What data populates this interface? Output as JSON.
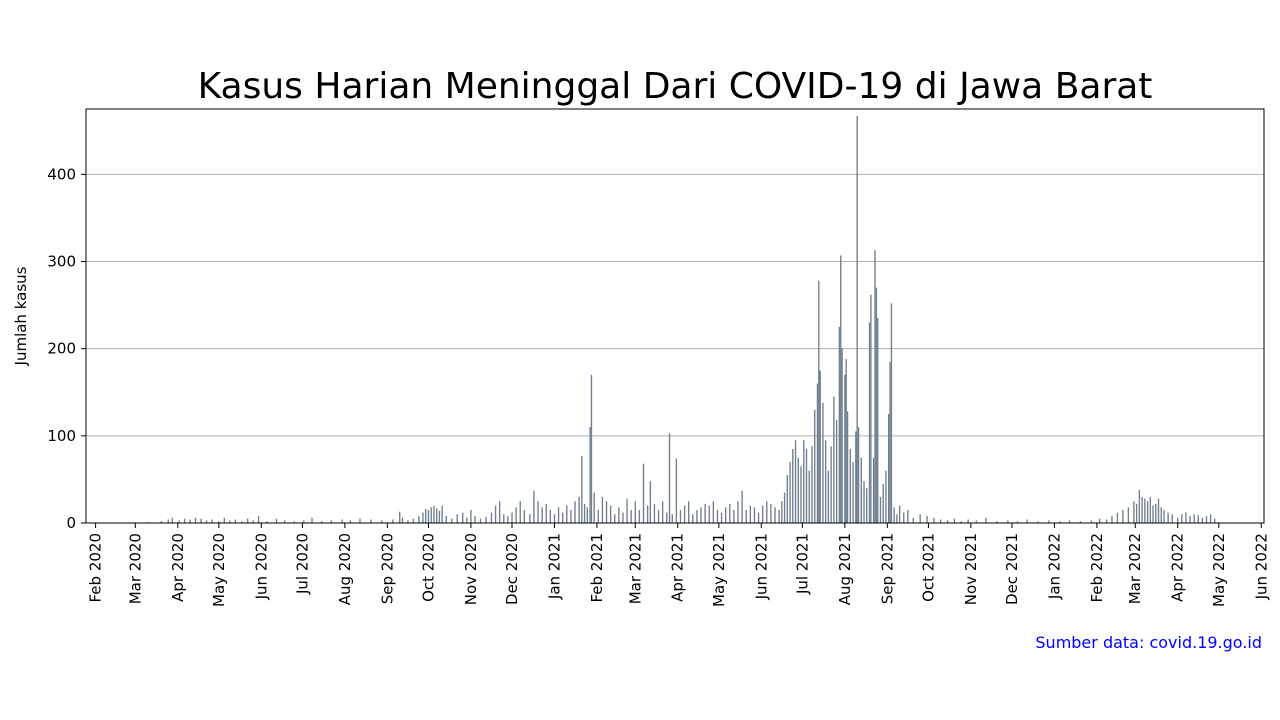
{
  "chart_data": {
    "type": "bar",
    "title": "Kasus Harian Meninggal Dari COVID-19 di Jawa Barat",
    "ylabel": "Jumlah kasus",
    "source": "Sumber data: covid.19.go.id",
    "bar_color": "#708090",
    "source_color": "#0000ff",
    "grid": "horizontal",
    "ylim": [
      0,
      475
    ],
    "xlim": [
      "2020-01-25",
      "2022-06-03"
    ],
    "yticks": [
      0,
      100,
      200,
      300,
      400
    ],
    "xticks": [
      {
        "date": "2020-02-01",
        "label": "Feb 2020"
      },
      {
        "date": "2020-03-01",
        "label": "Mar 2020"
      },
      {
        "date": "2020-04-01",
        "label": "Apr 2020"
      },
      {
        "date": "2020-05-01",
        "label": "May 2020"
      },
      {
        "date": "2020-06-01",
        "label": "Jun 2020"
      },
      {
        "date": "2020-07-01",
        "label": "Jul 2020"
      },
      {
        "date": "2020-08-01",
        "label": "Aug 2020"
      },
      {
        "date": "2020-09-01",
        "label": "Sep 2020"
      },
      {
        "date": "2020-10-01",
        "label": "Oct 2020"
      },
      {
        "date": "2020-11-01",
        "label": "Nov 2020"
      },
      {
        "date": "2020-12-01",
        "label": "Dec 2020"
      },
      {
        "date": "2021-01-01",
        "label": "Jan 2021"
      },
      {
        "date": "2021-02-01",
        "label": "Feb 2021"
      },
      {
        "date": "2021-03-01",
        "label": "Mar 2021"
      },
      {
        "date": "2021-04-01",
        "label": "Apr 2021"
      },
      {
        "date": "2021-05-01",
        "label": "May 2021"
      },
      {
        "date": "2021-06-01",
        "label": "Jun 2021"
      },
      {
        "date": "2021-07-01",
        "label": "Jul 2021"
      },
      {
        "date": "2021-08-01",
        "label": "Aug 2021"
      },
      {
        "date": "2021-09-01",
        "label": "Sep 2021"
      },
      {
        "date": "2021-10-01",
        "label": "Oct 2021"
      },
      {
        "date": "2021-11-01",
        "label": "Nov 2021"
      },
      {
        "date": "2021-12-01",
        "label": "Dec 2021"
      },
      {
        "date": "2022-01-01",
        "label": "Jan 2022"
      },
      {
        "date": "2022-02-01",
        "label": "Feb 2022"
      },
      {
        "date": "2022-03-01",
        "label": "Mar 2022"
      },
      {
        "date": "2022-04-01",
        "label": "Apr 2022"
      },
      {
        "date": "2022-05-01",
        "label": "May 2022"
      },
      {
        "date": "2022-06-01",
        "label": "Jun 2022"
      }
    ],
    "points": [
      [
        "2020-03-10",
        1
      ],
      [
        "2020-03-20",
        2
      ],
      [
        "2020-03-25",
        4
      ],
      [
        "2020-03-28",
        6
      ],
      [
        "2020-04-02",
        3
      ],
      [
        "2020-04-06",
        5
      ],
      [
        "2020-04-10",
        4
      ],
      [
        "2020-04-14",
        6
      ],
      [
        "2020-04-18",
        5
      ],
      [
        "2020-04-22",
        3
      ],
      [
        "2020-04-26",
        4
      ],
      [
        "2020-05-01",
        2
      ],
      [
        "2020-05-05",
        6
      ],
      [
        "2020-05-09",
        3
      ],
      [
        "2020-05-13",
        4
      ],
      [
        "2020-05-18",
        2
      ],
      [
        "2020-05-22",
        5
      ],
      [
        "2020-05-26",
        3
      ],
      [
        "2020-05-30",
        8
      ],
      [
        "2020-06-05",
        2
      ],
      [
        "2020-06-12",
        5
      ],
      [
        "2020-06-18",
        3
      ],
      [
        "2020-06-25",
        2
      ],
      [
        "2020-07-02",
        3
      ],
      [
        "2020-07-08",
        6
      ],
      [
        "2020-07-15",
        2
      ],
      [
        "2020-07-22",
        3
      ],
      [
        "2020-07-30",
        4
      ],
      [
        "2020-08-05",
        3
      ],
      [
        "2020-08-12",
        5
      ],
      [
        "2020-08-20",
        4
      ],
      [
        "2020-08-28",
        3
      ],
      [
        "2020-09-05",
        4
      ],
      [
        "2020-09-10",
        13
      ],
      [
        "2020-09-12",
        6
      ],
      [
        "2020-09-16",
        3
      ],
      [
        "2020-09-20",
        5
      ],
      [
        "2020-09-24",
        8
      ],
      [
        "2020-09-27",
        12
      ],
      [
        "2020-09-29",
        16
      ],
      [
        "2020-10-01",
        15
      ],
      [
        "2020-10-03",
        18
      ],
      [
        "2020-10-05",
        20
      ],
      [
        "2020-10-07",
        17
      ],
      [
        "2020-10-09",
        14
      ],
      [
        "2020-10-11",
        20
      ],
      [
        "2020-10-14",
        8
      ],
      [
        "2020-10-18",
        5
      ],
      [
        "2020-10-22",
        10
      ],
      [
        "2020-10-26",
        12
      ],
      [
        "2020-10-29",
        6
      ],
      [
        "2020-11-01",
        15
      ],
      [
        "2020-11-04",
        8
      ],
      [
        "2020-11-08",
        5
      ],
      [
        "2020-11-12",
        7
      ],
      [
        "2020-11-16",
        12
      ],
      [
        "2020-11-19",
        20
      ],
      [
        "2020-11-22",
        25
      ],
      [
        "2020-11-25",
        10
      ],
      [
        "2020-11-28",
        8
      ],
      [
        "2020-12-01",
        12
      ],
      [
        "2020-12-04",
        18
      ],
      [
        "2020-12-07",
        25
      ],
      [
        "2020-12-10",
        15
      ],
      [
        "2020-12-14",
        10
      ],
      [
        "2020-12-17",
        37
      ],
      [
        "2020-12-20",
        25
      ],
      [
        "2020-12-23",
        18
      ],
      [
        "2020-12-26",
        22
      ],
      [
        "2020-12-29",
        15
      ],
      [
        "2021-01-01",
        10
      ],
      [
        "2021-01-04",
        18
      ],
      [
        "2021-01-07",
        12
      ],
      [
        "2021-01-10",
        20
      ],
      [
        "2021-01-13",
        15
      ],
      [
        "2021-01-16",
        25
      ],
      [
        "2021-01-19",
        30
      ],
      [
        "2021-01-21",
        77
      ],
      [
        "2021-01-23",
        22
      ],
      [
        "2021-01-25",
        18
      ],
      [
        "2021-01-27",
        110
      ],
      [
        "2021-01-28",
        170
      ],
      [
        "2021-01-30",
        35
      ],
      [
        "2021-02-02",
        15
      ],
      [
        "2021-02-05",
        30
      ],
      [
        "2021-02-08",
        25
      ],
      [
        "2021-02-11",
        20
      ],
      [
        "2021-02-14",
        10
      ],
      [
        "2021-02-17",
        18
      ],
      [
        "2021-02-20",
        12
      ],
      [
        "2021-02-23",
        28
      ],
      [
        "2021-02-26",
        15
      ],
      [
        "2021-03-01",
        25
      ],
      [
        "2021-03-04",
        15
      ],
      [
        "2021-03-07",
        68
      ],
      [
        "2021-03-10",
        20
      ],
      [
        "2021-03-12",
        48
      ],
      [
        "2021-03-15",
        22
      ],
      [
        "2021-03-18",
        15
      ],
      [
        "2021-03-21",
        25
      ],
      [
        "2021-03-24",
        12
      ],
      [
        "2021-03-26",
        103
      ],
      [
        "2021-03-28",
        10
      ],
      [
        "2021-03-31",
        74
      ],
      [
        "2021-04-03",
        15
      ],
      [
        "2021-04-06",
        20
      ],
      [
        "2021-04-09",
        25
      ],
      [
        "2021-04-12",
        10
      ],
      [
        "2021-04-15",
        15
      ],
      [
        "2021-04-18",
        18
      ],
      [
        "2021-04-21",
        22
      ],
      [
        "2021-04-24",
        20
      ],
      [
        "2021-04-27",
        25
      ],
      [
        "2021-04-30",
        15
      ],
      [
        "2021-05-03",
        12
      ],
      [
        "2021-05-06",
        18
      ],
      [
        "2021-05-09",
        22
      ],
      [
        "2021-05-12",
        15
      ],
      [
        "2021-05-15",
        25
      ],
      [
        "2021-05-18",
        37
      ],
      [
        "2021-05-21",
        15
      ],
      [
        "2021-05-24",
        20
      ],
      [
        "2021-05-27",
        18
      ],
      [
        "2021-05-30",
        12
      ],
      [
        "2021-06-02",
        20
      ],
      [
        "2021-06-05",
        25
      ],
      [
        "2021-06-08",
        22
      ],
      [
        "2021-06-11",
        18
      ],
      [
        "2021-06-14",
        15
      ],
      [
        "2021-06-16",
        25
      ],
      [
        "2021-06-18",
        35
      ],
      [
        "2021-06-20",
        55
      ],
      [
        "2021-06-22",
        70
      ],
      [
        "2021-06-24",
        85
      ],
      [
        "2021-06-26",
        95
      ],
      [
        "2021-06-28",
        75
      ],
      [
        "2021-06-30",
        65
      ],
      [
        "2021-07-02",
        95
      ],
      [
        "2021-07-04",
        85
      ],
      [
        "2021-07-06",
        60
      ],
      [
        "2021-07-08",
        88
      ],
      [
        "2021-07-10",
        130
      ],
      [
        "2021-07-12",
        160
      ],
      [
        "2021-07-13",
        278
      ],
      [
        "2021-07-14",
        175
      ],
      [
        "2021-07-16",
        138
      ],
      [
        "2021-07-18",
        95
      ],
      [
        "2021-07-20",
        60
      ],
      [
        "2021-07-22",
        88
      ],
      [
        "2021-07-24",
        145
      ],
      [
        "2021-07-26",
        118
      ],
      [
        "2021-07-28",
        225
      ],
      [
        "2021-07-29",
        307
      ],
      [
        "2021-07-30",
        200
      ],
      [
        "2021-08-01",
        170
      ],
      [
        "2021-08-02",
        188
      ],
      [
        "2021-08-03",
        128
      ],
      [
        "2021-08-05",
        85
      ],
      [
        "2021-08-07",
        70
      ],
      [
        "2021-08-09",
        105
      ],
      [
        "2021-08-10",
        467
      ],
      [
        "2021-08-11",
        110
      ],
      [
        "2021-08-13",
        75
      ],
      [
        "2021-08-15",
        48
      ],
      [
        "2021-08-17",
        40
      ],
      [
        "2021-08-19",
        230
      ],
      [
        "2021-08-20",
        262
      ],
      [
        "2021-08-22",
        75
      ],
      [
        "2021-08-23",
        313
      ],
      [
        "2021-08-24",
        270
      ],
      [
        "2021-08-25",
        235
      ],
      [
        "2021-08-27",
        30
      ],
      [
        "2021-08-29",
        45
      ],
      [
        "2021-08-31",
        60
      ],
      [
        "2021-09-02",
        125
      ],
      [
        "2021-09-03",
        185
      ],
      [
        "2021-09-04",
        252
      ],
      [
        "2021-09-06",
        18
      ],
      [
        "2021-09-08",
        10
      ],
      [
        "2021-09-10",
        20
      ],
      [
        "2021-09-13",
        12
      ],
      [
        "2021-09-16",
        15
      ],
      [
        "2021-09-20",
        6
      ],
      [
        "2021-09-25",
        10
      ],
      [
        "2021-09-30",
        8
      ],
      [
        "2021-10-05",
        6
      ],
      [
        "2021-10-10",
        4
      ],
      [
        "2021-10-15",
        3
      ],
      [
        "2021-10-20",
        5
      ],
      [
        "2021-10-25",
        2
      ],
      [
        "2021-10-30",
        4
      ],
      [
        "2021-11-05",
        3
      ],
      [
        "2021-11-12",
        6
      ],
      [
        "2021-11-20",
        2
      ],
      [
        "2021-11-28",
        3
      ],
      [
        "2021-12-05",
        2
      ],
      [
        "2021-12-12",
        4
      ],
      [
        "2021-12-20",
        2
      ],
      [
        "2021-12-28",
        3
      ],
      [
        "2022-01-05",
        2
      ],
      [
        "2022-01-12",
        3
      ],
      [
        "2022-01-20",
        2
      ],
      [
        "2022-01-28",
        3
      ],
      [
        "2022-02-03",
        5
      ],
      [
        "2022-02-08",
        4
      ],
      [
        "2022-02-12",
        8
      ],
      [
        "2022-02-16",
        12
      ],
      [
        "2022-02-20",
        15
      ],
      [
        "2022-02-24",
        18
      ],
      [
        "2022-02-28",
        25
      ],
      [
        "2022-03-02",
        22
      ],
      [
        "2022-03-04",
        38
      ],
      [
        "2022-03-06",
        30
      ],
      [
        "2022-03-08",
        28
      ],
      [
        "2022-03-10",
        25
      ],
      [
        "2022-03-12",
        30
      ],
      [
        "2022-03-14",
        20
      ],
      [
        "2022-03-16",
        22
      ],
      [
        "2022-03-18",
        28
      ],
      [
        "2022-03-20",
        18
      ],
      [
        "2022-03-22",
        15
      ],
      [
        "2022-03-25",
        12
      ],
      [
        "2022-03-28",
        10
      ],
      [
        "2022-04-01",
        6
      ],
      [
        "2022-04-04",
        10
      ],
      [
        "2022-04-07",
        12
      ],
      [
        "2022-04-10",
        8
      ],
      [
        "2022-04-13",
        10
      ],
      [
        "2022-04-16",
        9
      ],
      [
        "2022-04-19",
        6
      ],
      [
        "2022-04-22",
        8
      ],
      [
        "2022-04-25",
        10
      ],
      [
        "2022-04-28",
        5
      ]
    ]
  }
}
